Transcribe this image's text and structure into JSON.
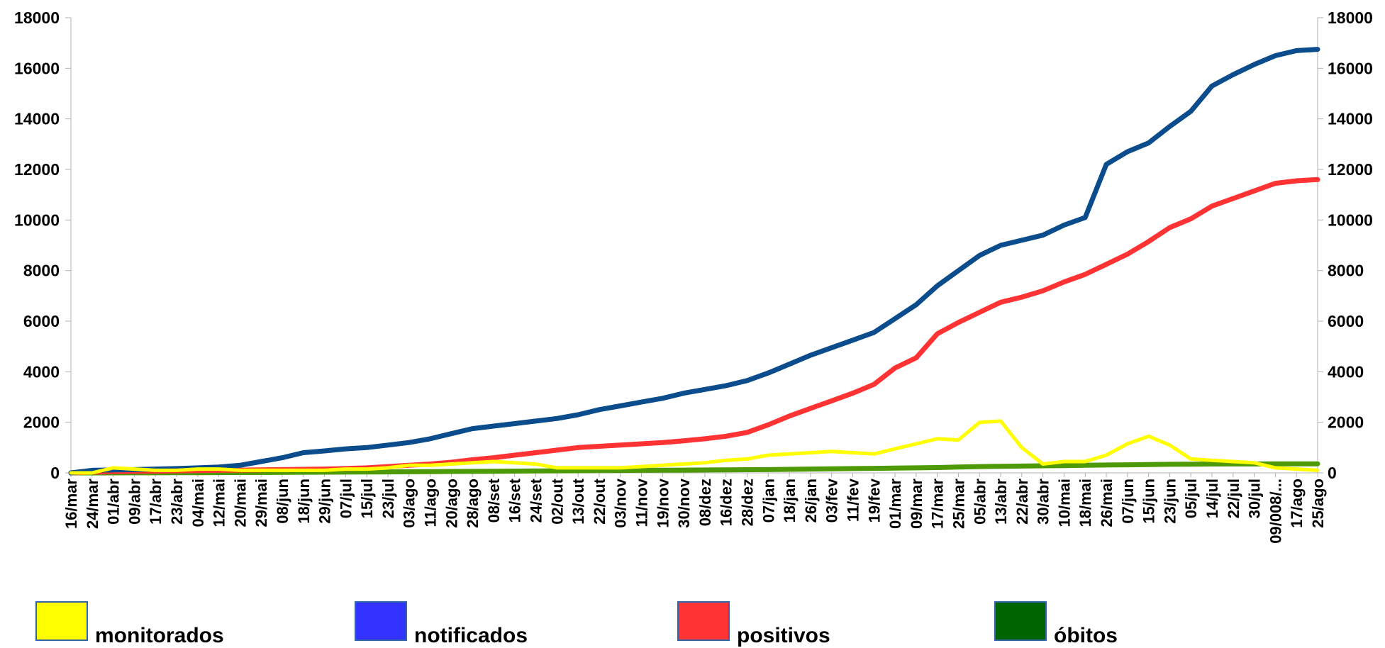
{
  "chart_data": {
    "type": "line",
    "title": "",
    "xlabel": "",
    "ylabel": "",
    "ylim": [
      0,
      18000
    ],
    "yticks": [
      0,
      2000,
      4000,
      6000,
      8000,
      10000,
      12000,
      14000,
      16000,
      18000
    ],
    "secondary_yticks": [
      0,
      2000,
      4000,
      6000,
      8000,
      10000,
      12000,
      14000,
      16000,
      18000
    ],
    "grid": false,
    "legend_position": "bottom",
    "categories": [
      "16/mar",
      "24/mar",
      "01/abr",
      "09/abr",
      "17/abr",
      "23/abr",
      "04/mai",
      "12/mai",
      "20/mai",
      "29/mai",
      "08/jun",
      "18/jun",
      "29/jun",
      "07/jul",
      "15/jul",
      "23/jul",
      "03/ago",
      "11/ago",
      "20/ago",
      "28/ago",
      "08/set",
      "16/set",
      "24/set",
      "02/out",
      "13/out",
      "22/out",
      "03/nov",
      "11/nov",
      "19/nov",
      "30/nov",
      "08/dez",
      "16/dez",
      "28/dez",
      "07/jan",
      "18/jan",
      "26/jan",
      "03/fev",
      "11/fev",
      "19/fev",
      "01/mar",
      "09/mar",
      "17/mar",
      "25/mar",
      "05/abr",
      "13/abr",
      "22/abr",
      "30/abr",
      "10/mai",
      "18/mai",
      "26/mai",
      "07/jun",
      "15/jun",
      "23/jun",
      "05/jul",
      "14/jul",
      "22/jul",
      "30/jul",
      "09/008/...",
      "17/ago",
      "25/ago"
    ],
    "series": [
      {
        "name": "monitorados",
        "color": "#ffff00",
        "values": [
          0,
          0,
          200,
          150,
          100,
          100,
          150,
          150,
          100,
          100,
          100,
          100,
          100,
          150,
          150,
          200,
          300,
          300,
          350,
          400,
          450,
          400,
          350,
          200,
          200,
          200,
          200,
          250,
          300,
          350,
          400,
          500,
          550,
          700,
          750,
          800,
          850,
          800,
          750,
          950,
          1150,
          1350,
          1300,
          2000,
          2050,
          1000,
          350,
          450,
          450,
          700,
          1150,
          1450,
          1100,
          550,
          500,
          450,
          400,
          200,
          150,
          100
        ]
      },
      {
        "name": "notificados",
        "color": "#0a4c8c",
        "values": [
          0,
          100,
          120,
          130,
          150,
          170,
          200,
          230,
          300,
          450,
          600,
          800,
          870,
          950,
          1000,
          1100,
          1200,
          1350,
          1550,
          1750,
          1850,
          1950,
          2050,
          2150,
          2300,
          2500,
          2650,
          2800,
          2950,
          3150,
          3300,
          3450,
          3650,
          3950,
          4300,
          4650,
          4950,
          5250,
          5550,
          6100,
          6650,
          7400,
          8000,
          8600,
          9000,
          9200,
          9400,
          9800,
          10100,
          12200,
          12700,
          13050,
          13700,
          14300,
          15300,
          15750,
          16150,
          16500,
          16700,
          16750
        ]
      },
      {
        "name": "positivos",
        "color": "#ff3333",
        "values": [
          0,
          30,
          50,
          60,
          70,
          80,
          90,
          100,
          110,
          120,
          130,
          140,
          150,
          170,
          200,
          250,
          300,
          350,
          420,
          520,
          600,
          700,
          800,
          900,
          1000,
          1050,
          1100,
          1150,
          1200,
          1270,
          1350,
          1450,
          1600,
          1900,
          2250,
          2550,
          2850,
          3150,
          3500,
          4150,
          4550,
          5500,
          5950,
          6350,
          6750,
          6950,
          7200,
          7550,
          7850,
          8250,
          8650,
          9150,
          9700,
          10050,
          10550,
          10850,
          11150,
          11450,
          11550,
          11600
        ]
      },
      {
        "name": "óbitos",
        "color": "#4e9a06",
        "values": [
          0,
          0,
          0,
          2,
          4,
          6,
          8,
          10,
          13,
          16,
          20,
          24,
          28,
          32,
          36,
          40,
          45,
          50,
          55,
          60,
          65,
          70,
          75,
          80,
          85,
          90,
          95,
          100,
          105,
          110,
          115,
          120,
          125,
          130,
          140,
          150,
          160,
          170,
          180,
          190,
          200,
          210,
          230,
          250,
          260,
          270,
          280,
          290,
          300,
          310,
          320,
          330,
          340,
          345,
          350,
          352,
          354,
          356,
          358,
          360
        ]
      }
    ]
  },
  "legend": {
    "items": [
      {
        "label": "monitorados",
        "color": "#ffff00"
      },
      {
        "label": "notificados",
        "color": "#3333ff"
      },
      {
        "label": "positivos",
        "color": "#ff3333"
      },
      {
        "label": "óbitos",
        "color": "#006400"
      }
    ]
  }
}
